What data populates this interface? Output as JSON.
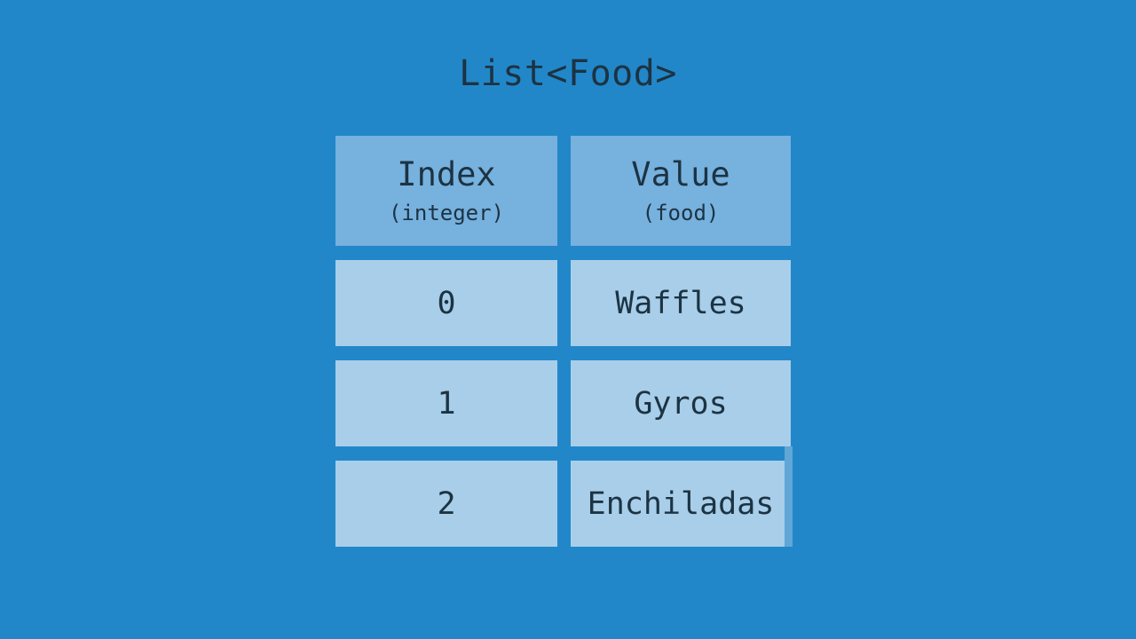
{
  "title": "List<Food>",
  "table": {
    "columns": [
      {
        "label": "Index",
        "sublabel": "(integer)"
      },
      {
        "label": "Value",
        "sublabel": "(food)"
      }
    ],
    "rows": [
      {
        "index": "0",
        "value": "Waffles"
      },
      {
        "index": "1",
        "value": "Gyros"
      },
      {
        "index": "2",
        "value": "Enchiladas"
      }
    ]
  },
  "colors": {
    "background": "#2287c8",
    "header_cell": "#77b1de",
    "data_cell": "#a8cee9",
    "text": "#1c3343",
    "artifact": "#60a6d6"
  }
}
